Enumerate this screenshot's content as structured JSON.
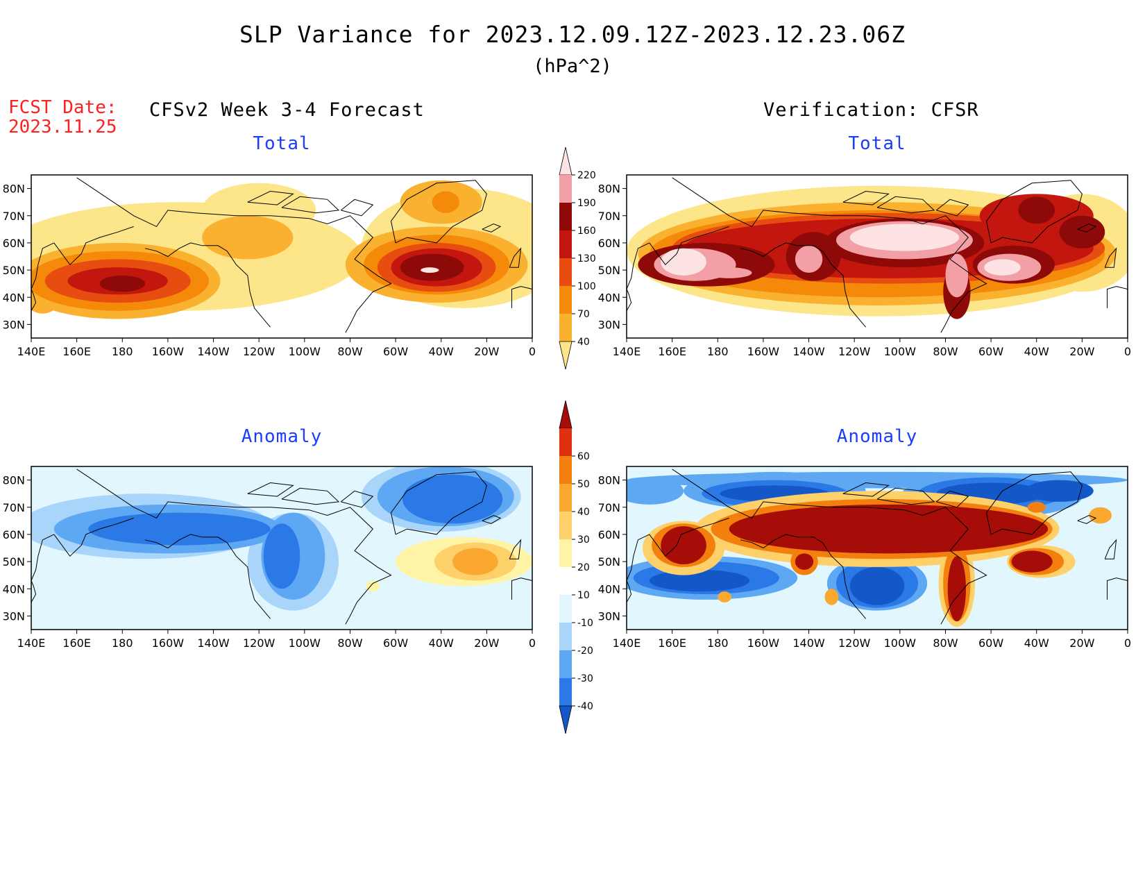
{
  "header": {
    "title": "SLP Variance for 2023.12.09.12Z-2023.12.23.06Z",
    "units": "(hPa^2)",
    "fcst_label": "FCST Date:",
    "fcst_date": "2023.11.25",
    "left_heading": "CFSv2 Week 3-4 Forecast",
    "right_heading": "Verification: CFSR"
  },
  "panels": {
    "top_left_title": "Total",
    "top_right_title": "Total",
    "bottom_left_title": "Anomaly",
    "bottom_right_title": "Anomaly"
  },
  "axes": {
    "lat_labels": [
      "80N",
      "70N",
      "60N",
      "50N",
      "40N",
      "30N"
    ],
    "lon_labels": [
      "140E",
      "160E",
      "180",
      "160W",
      "140W",
      "120W",
      "100W",
      "80W",
      "60W",
      "40W",
      "20W",
      "0"
    ]
  },
  "colorbars": {
    "total": {
      "levels": [
        "40",
        "70",
        "100",
        "130",
        "160",
        "190",
        "220"
      ],
      "colors": [
        "#fde68a",
        "#fbb130",
        "#f58a0a",
        "#e74c10",
        "#c2160e",
        "#8d0a08",
        "#f2a0a6",
        "#fde3e4"
      ]
    },
    "anomaly": {
      "levels": [
        "-40",
        "-30",
        "-20",
        "-10",
        "10",
        "20",
        "30",
        "40",
        "50",
        "60"
      ],
      "colors": [
        "#1458c8",
        "#2a79e6",
        "#5ea8f3",
        "#a9d5fb",
        "#e2f7fd",
        "#ffffff",
        "#fff3a6",
        "#fdd06a",
        "#fba830",
        "#f27f0e",
        "#e03010",
        "#a70d08"
      ]
    }
  },
  "chart_data": {
    "type": "heatmap",
    "title": "SLP Variance for 2023.12.09.12Z-2023.12.23.06Z",
    "units": "(hPa^2)",
    "xlim": [
      140,
      360
    ],
    "ylim": [
      25,
      85
    ],
    "panels": [
      {
        "name": "CFSv2 Week 3-4 Forecast Total",
        "features": [
          {
            "lon": 178,
            "lat": 45,
            "value": 170
          },
          {
            "lon": 145,
            "lat": 44,
            "value": 85
          },
          {
            "lon": 240,
            "lat": 65,
            "value": 80
          },
          {
            "lon": 317,
            "lat": 51,
            "value": 195
          },
          {
            "lon": 322,
            "lat": 75,
            "value": 85
          }
        ]
      },
      {
        "name": "Verification CFSR Total",
        "features": [
          {
            "lon": 165,
            "lat": 52,
            "value": 225
          },
          {
            "lon": 178,
            "lat": 49,
            "value": 205
          },
          {
            "lon": 218,
            "lat": 54,
            "value": 195
          },
          {
            "lon": 260,
            "lat": 60,
            "value": 225
          },
          {
            "lon": 285,
            "lat": 52,
            "value": 215
          },
          {
            "lon": 310,
            "lat": 50,
            "value": 215
          },
          {
            "lon": 320,
            "lat": 72,
            "value": 190
          },
          {
            "lon": 340,
            "lat": 64,
            "value": 170
          }
        ]
      },
      {
        "name": "CFSv2 Week 3-4 Forecast Anomaly",
        "features": [
          {
            "lon": 205,
            "lat": 62,
            "value": -35
          },
          {
            "lon": 255,
            "lat": 48,
            "value": -35
          },
          {
            "lon": 325,
            "lat": 72,
            "value": -40
          },
          {
            "lon": 335,
            "lat": 50,
            "value": 35
          },
          {
            "lon": 145,
            "lat": 55,
            "value": -25
          }
        ]
      },
      {
        "name": "Verification CFSR Anomaly",
        "features": [
          {
            "lon": 165,
            "lat": 56,
            "value": 65
          },
          {
            "lon": 230,
            "lat": 60,
            "value": 65
          },
          {
            "lon": 262,
            "lat": 61,
            "value": 70
          },
          {
            "lon": 285,
            "lat": 40,
            "value": 65
          },
          {
            "lon": 320,
            "lat": 50,
            "value": 60
          },
          {
            "lon": 218,
            "lat": 50,
            "value": 55
          },
          {
            "lon": 170,
            "lat": 40,
            "value": -40
          },
          {
            "lon": 250,
            "lat": 40,
            "value": -40
          },
          {
            "lon": 205,
            "lat": 75,
            "value": -40
          },
          {
            "lon": 298,
            "lat": 76,
            "value": -40
          }
        ]
      }
    ]
  }
}
